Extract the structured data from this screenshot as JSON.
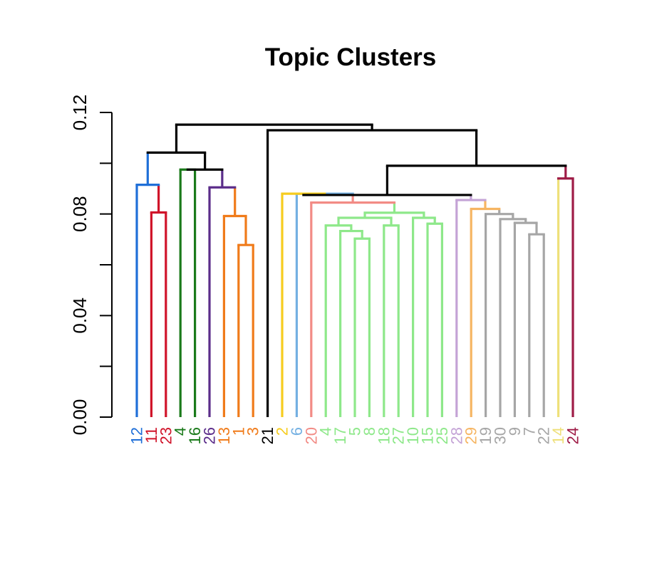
{
  "chart_data": {
    "type": "dendrogram",
    "title": "Topic Clusters",
    "xlabel": "",
    "ylabel": "",
    "ylim": [
      0,
      0.12
    ],
    "y_ticks": [
      0.0,
      0.04,
      0.08,
      0.12
    ],
    "y_tick_labels": [
      "0.00",
      "0.04",
      "0.08",
      "0.12"
    ],
    "y_minor_ticks": [
      0.02,
      0.06,
      0.1
    ],
    "grid": false,
    "leaves": [
      {
        "label": "12",
        "color": "#1f6fd8"
      },
      {
        "label": "11",
        "color": "#d0142a"
      },
      {
        "label": "23",
        "color": "#d0142a"
      },
      {
        "label": "4",
        "color": "#1a7a1a"
      },
      {
        "label": "16",
        "color": "#1a7a1a"
      },
      {
        "label": "26",
        "color": "#5b2d8a"
      },
      {
        "label": "13",
        "color": "#f07b1a"
      },
      {
        "label": "1",
        "color": "#f07b1a"
      },
      {
        "label": "3",
        "color": "#f07b1a"
      },
      {
        "label": "21",
        "color": "#000000"
      },
      {
        "label": "2",
        "color": "#f6cc1e"
      },
      {
        "label": "6",
        "color": "#74b0e2"
      },
      {
        "label": "20",
        "color": "#f28b85"
      },
      {
        "label": "4",
        "color": "#8ee88a"
      },
      {
        "label": "17",
        "color": "#8ee88a"
      },
      {
        "label": "5",
        "color": "#8ee88a"
      },
      {
        "label": "8",
        "color": "#8ee88a"
      },
      {
        "label": "18",
        "color": "#8ee88a"
      },
      {
        "label": "27",
        "color": "#8ee88a"
      },
      {
        "label": "10",
        "color": "#8ee88a"
      },
      {
        "label": "15",
        "color": "#8ee88a"
      },
      {
        "label": "25",
        "color": "#8ee88a"
      },
      {
        "label": "28",
        "color": "#c4a3d6"
      },
      {
        "label": "29",
        "color": "#f6b562"
      },
      {
        "label": "19",
        "color": "#a6a6a6"
      },
      {
        "label": "30",
        "color": "#a6a6a6"
      },
      {
        "label": "9",
        "color": "#a6a6a6"
      },
      {
        "label": "7",
        "color": "#a6a6a6"
      },
      {
        "label": "22",
        "color": "#a6a6a6"
      },
      {
        "label": "14",
        "color": "#eee07a"
      },
      {
        "label": "24",
        "color": "#9e1b46"
      }
    ],
    "merges": [
      {
        "id": "a1",
        "left": 1,
        "right": 2,
        "height": 0.0806,
        "color": "#d0142a"
      },
      {
        "id": "a2",
        "left": 0,
        "right": "a1",
        "height": 0.0915,
        "color": "#1f6fd8"
      },
      {
        "id": "a3",
        "left": 3,
        "right": 4,
        "height": 0.0975,
        "color": "#1a7a1a"
      },
      {
        "id": "a4",
        "left": 7,
        "right": 8,
        "height": 0.0678,
        "color": "#f07b1a"
      },
      {
        "id": "a5",
        "left": 6,
        "right": "a4",
        "height": 0.0792,
        "color": "#f07b1a"
      },
      {
        "id": "a6",
        "left": 5,
        "right": "a5",
        "height": 0.0905,
        "color": "#5b2d8a"
      },
      {
        "id": "a7",
        "left": "a3",
        "right": "a6",
        "height": 0.0975,
        "color": "#000000"
      },
      {
        "id": "a8",
        "left": "a2",
        "right": "a7",
        "height": 0.1042,
        "color": "#000000"
      },
      {
        "id": "b1",
        "left": 15,
        "right": 16,
        "height": 0.0703,
        "color": "#8ee88a"
      },
      {
        "id": "b2",
        "left": 14,
        "right": "b1",
        "height": 0.0733,
        "color": "#8ee88a"
      },
      {
        "id": "b3",
        "left": 13,
        "right": "b2",
        "height": 0.0755,
        "color": "#8ee88a"
      },
      {
        "id": "b4",
        "left": 17,
        "right": 18,
        "height": 0.0755,
        "color": "#8ee88a"
      },
      {
        "id": "b5",
        "left": "b3",
        "right": "b4",
        "height": 0.0785,
        "color": "#8ee88a"
      },
      {
        "id": "b6",
        "left": 20,
        "right": 21,
        "height": 0.0762,
        "color": "#8ee88a"
      },
      {
        "id": "b7",
        "left": 19,
        "right": "b6",
        "height": 0.0785,
        "color": "#8ee88a"
      },
      {
        "id": "b8",
        "left": "b5",
        "right": "b7",
        "height": 0.0805,
        "color": "#8ee88a"
      },
      {
        "id": "b9",
        "left": 12,
        "right": "b8",
        "height": 0.0845,
        "color": "#f28b85"
      },
      {
        "id": "b10",
        "left": 11,
        "right": "b9",
        "height": 0.088,
        "color": "#74b0e2"
      },
      {
        "id": "b11",
        "left": 10,
        "right": "b10",
        "height": 0.088,
        "color": "#f6cc1e"
      },
      {
        "id": "c1",
        "left": 27,
        "right": 28,
        "height": 0.072,
        "color": "#a6a6a6"
      },
      {
        "id": "c2",
        "left": 26,
        "right": "c1",
        "height": 0.0765,
        "color": "#a6a6a6"
      },
      {
        "id": "c3",
        "left": 25,
        "right": "c2",
        "height": 0.078,
        "color": "#a6a6a6"
      },
      {
        "id": "c4",
        "left": 24,
        "right": "c3",
        "height": 0.08,
        "color": "#a6a6a6"
      },
      {
        "id": "c5",
        "left": 23,
        "right": "c4",
        "height": 0.082,
        "color": "#f6b562"
      },
      {
        "id": "c6",
        "left": 22,
        "right": "c5",
        "height": 0.0855,
        "color": "#c4a3d6"
      },
      {
        "id": "d1",
        "left": "b11",
        "right": "c6",
        "height": 0.0875,
        "color": "#000000"
      },
      {
        "id": "d2",
        "left": 29,
        "right": 30,
        "height": 0.094,
        "color": "#9e1b46"
      },
      {
        "id": "d3",
        "left": "d1",
        "right": "d2",
        "height": 0.099,
        "color": "#000000"
      },
      {
        "id": "d4",
        "left": 9,
        "right": "d3",
        "height": 0.113,
        "color": "#000000"
      },
      {
        "id": "root",
        "left": "a8",
        "right": "d4",
        "height": 0.1152,
        "color": "#000000"
      }
    ]
  }
}
